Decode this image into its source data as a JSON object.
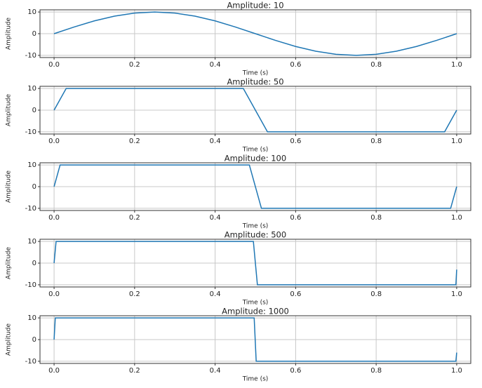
{
  "chart_data": [
    {
      "type": "line",
      "title": "Amplitude: 10",
      "xlabel": "Time (s)",
      "ylabel": "Amplitude",
      "color": "#1f77b4",
      "grid": true,
      "x": [
        0,
        0.05,
        0.1,
        0.15,
        0.2,
        0.25,
        0.3,
        0.35,
        0.4,
        0.45,
        0.5,
        0.55,
        0.6,
        0.65,
        0.7,
        0.75,
        0.8,
        0.85,
        0.9,
        0.95,
        1.0
      ],
      "values": [
        0,
        3.1,
        5.9,
        8.1,
        9.5,
        10,
        9.5,
        8.1,
        5.9,
        3.1,
        0,
        -3.1,
        -5.9,
        -8.1,
        -9.5,
        -10,
        -9.5,
        -8.1,
        -5.9,
        -3.1,
        0
      ],
      "xlim": [
        -0.035,
        1.035
      ],
      "ylim": [
        -11,
        11
      ],
      "xticks": [
        {
          "value": 0,
          "label": "0.0"
        },
        0.2,
        0.4,
        0.6,
        0.8,
        {
          "value": 1,
          "label": "1.0"
        }
      ],
      "yticks": [
        -10,
        0,
        10
      ]
    },
    {
      "type": "line",
      "title": "Amplitude: 50",
      "xlabel": "Time (s)",
      "ylabel": "Amplitude",
      "color": "#1f77b4",
      "grid": true,
      "x": [
        0,
        0.03,
        0.47,
        0.53,
        0.97,
        1.0
      ],
      "values": [
        0,
        10,
        10,
        -10,
        -10,
        0
      ],
      "xlim": [
        -0.035,
        1.035
      ],
      "ylim": [
        -11,
        11
      ],
      "xticks": [
        {
          "value": 0,
          "label": "0.0"
        },
        0.2,
        0.4,
        0.6,
        0.8,
        {
          "value": 1,
          "label": "1.0"
        }
      ],
      "yticks": [
        -10,
        0,
        10
      ]
    },
    {
      "type": "line",
      "title": "Amplitude: 100",
      "xlabel": "Time (s)",
      "ylabel": "Amplitude",
      "color": "#1f77b4",
      "grid": true,
      "x": [
        0,
        0.015,
        0.485,
        0.515,
        0.985,
        1.0
      ],
      "values": [
        0,
        10,
        10,
        -10,
        -10,
        0
      ],
      "xlim": [
        -0.035,
        1.035
      ],
      "ylim": [
        -11,
        11
      ],
      "xticks": [
        {
          "value": 0,
          "label": "0.0"
        },
        0.2,
        0.4,
        0.6,
        0.8,
        {
          "value": 1,
          "label": "1.0"
        }
      ],
      "yticks": [
        -10,
        0,
        10
      ]
    },
    {
      "type": "line",
      "title": "Amplitude: 500",
      "xlabel": "Time (s)",
      "ylabel": "Amplitude",
      "color": "#1f77b4",
      "grid": true,
      "x": [
        0,
        0.005,
        0.495,
        0.505,
        0.998,
        1.0
      ],
      "values": [
        0,
        10,
        10,
        -10,
        -10,
        -3
      ],
      "xlim": [
        -0.035,
        1.035
      ],
      "ylim": [
        -11,
        11
      ],
      "xticks": [
        {
          "value": 0,
          "label": "0.0"
        },
        0.2,
        0.4,
        0.6,
        0.8,
        {
          "value": 1,
          "label": "1.0"
        }
      ],
      "yticks": [
        -10,
        0,
        10
      ]
    },
    {
      "type": "line",
      "title": "Amplitude: 1000",
      "xlabel": "Time (s)",
      "ylabel": "Amplitude",
      "color": "#1f77b4",
      "grid": true,
      "x": [
        0,
        0.003,
        0.497,
        0.502,
        0.998,
        1.0
      ],
      "values": [
        0,
        10,
        10,
        -10,
        -10,
        -6
      ],
      "xlim": [
        -0.035,
        1.035
      ],
      "ylim": [
        -11,
        11
      ],
      "xticks": [
        {
          "value": 0,
          "label": "0.0"
        },
        0.2,
        0.4,
        0.6,
        0.8,
        {
          "value": 1,
          "label": "1.0"
        }
      ],
      "yticks": [
        -10,
        0,
        10
      ]
    }
  ]
}
